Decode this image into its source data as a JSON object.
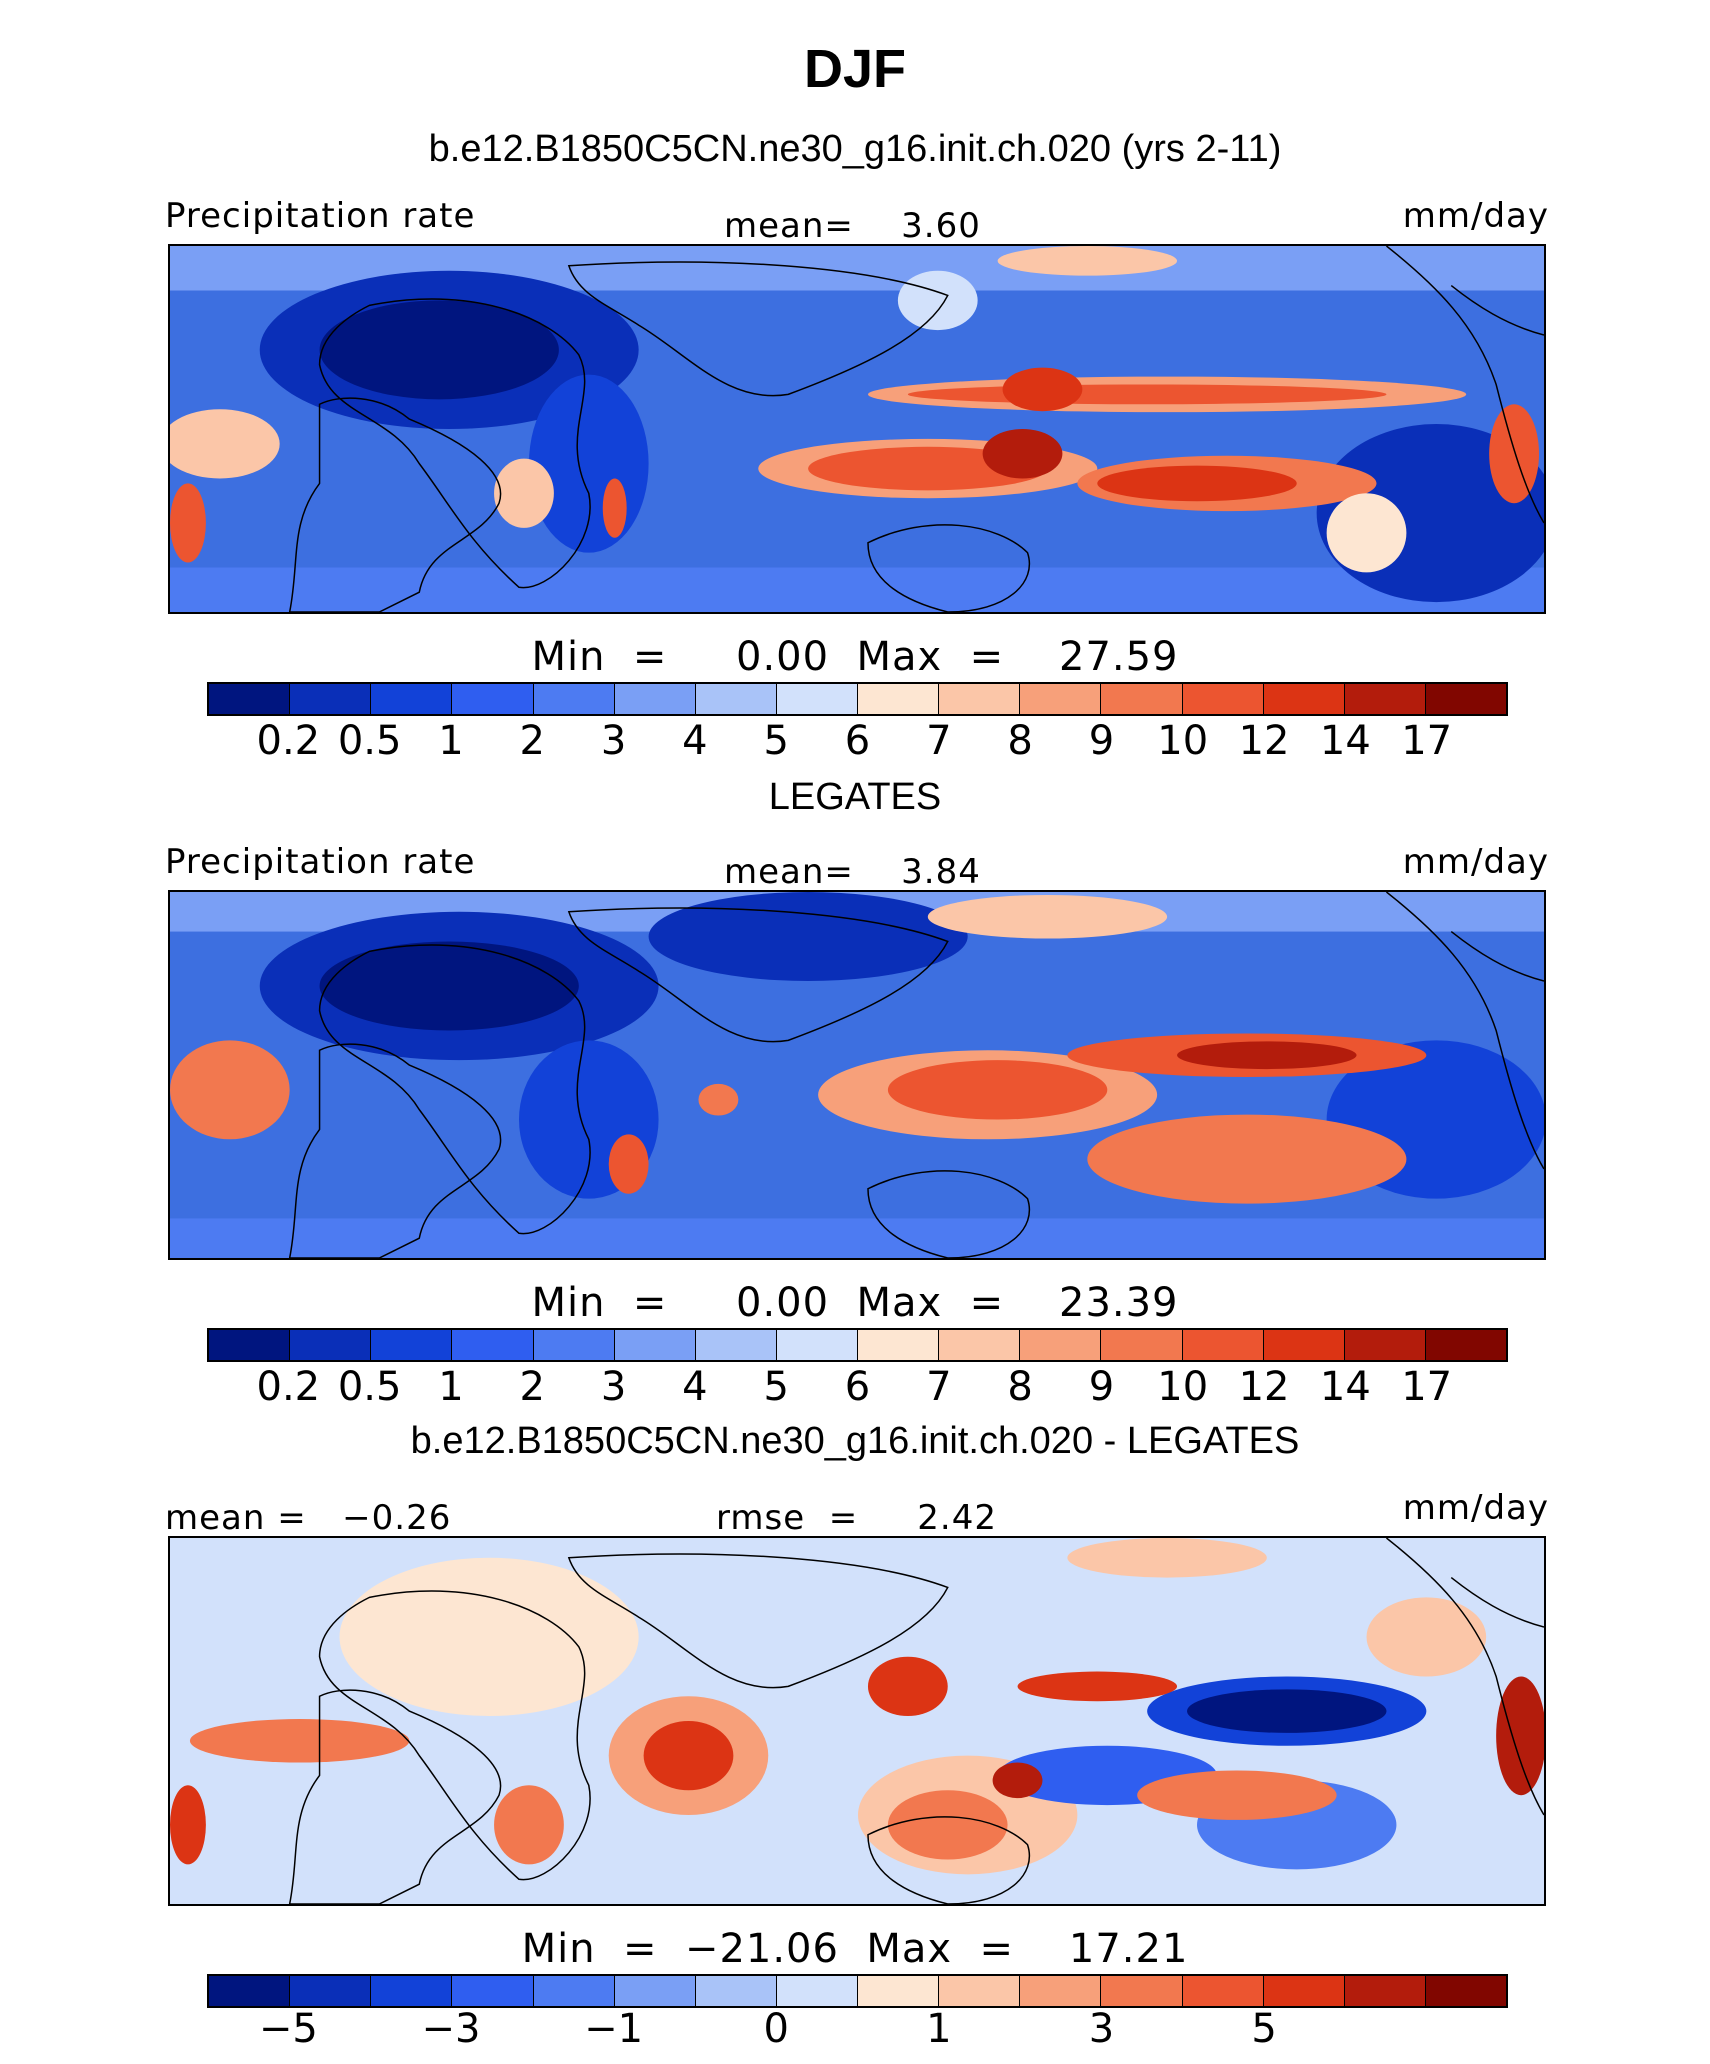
{
  "title": "DJF",
  "panels": [
    {
      "title": "b.e12.B1850C5CN.ne30_g16.init.ch.020 (yrs 2-11)",
      "left_label": "Precipitation rate",
      "center_label": "mean=    3.60",
      "right_label": "mm/day",
      "minmax": "Min  =     0.00  Max  =    27.59",
      "tick_labels": [
        "0.2",
        "0.5",
        "1",
        "2",
        "3",
        "4",
        "5",
        "6",
        "7",
        "8",
        "9",
        "10",
        "12",
        "14",
        "17"
      ]
    },
    {
      "title": "LEGATES",
      "left_label": "Precipitation rate",
      "center_label": "mean=    3.84",
      "right_label": "mm/day",
      "minmax": "Min  =     0.00  Max  =    23.39",
      "tick_labels": [
        "0.2",
        "0.5",
        "1",
        "2",
        "3",
        "4",
        "5",
        "6",
        "7",
        "8",
        "9",
        "10",
        "12",
        "14",
        "17"
      ]
    },
    {
      "title": "b.e12.B1850C5CN.ne30_g16.init.ch.020 - LEGATES",
      "left_label": "mean =   −0.26",
      "center_label": "rmse  =     2.42",
      "right_label": "mm/day",
      "minmax": "Min  =  −21.06  Max  =    17.21",
      "tick_labels": [
        "−5",
        "−3",
        "−1",
        "0",
        "1",
        "3",
        "5"
      ]
    }
  ],
  "colorbar": {
    "colors": [
      "#00157f",
      "#0a2fb8",
      "#1242d8",
      "#2f5ef0",
      "#4d7bf2",
      "#7a9ff5",
      "#a9c3f8",
      "#d2e1fb",
      "#fde6d2",
      "#fbc6a8",
      "#f7a07a",
      "#f2784f",
      "#ec5530",
      "#dc3414",
      "#b31c0c",
      "#810600"
    ]
  }
}
